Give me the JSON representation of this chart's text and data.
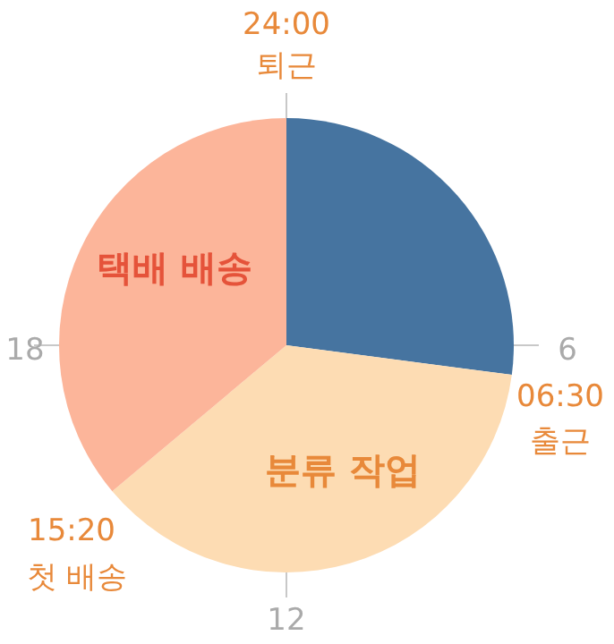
{
  "chart_data": {
    "type": "pie",
    "categories": [
      null,
      "분류 작업",
      "택배 배송"
    ],
    "values": [
      27.08,
      36.81,
      36.11
    ],
    "colors": [
      "#4674a0",
      "#fddcb3",
      "#fcb59a"
    ],
    "annotations": [
      "24:00",
      "퇴근",
      "6",
      "06:30",
      "출근",
      "12",
      "15:20",
      "첫 배송",
      "18"
    ]
  }
}
